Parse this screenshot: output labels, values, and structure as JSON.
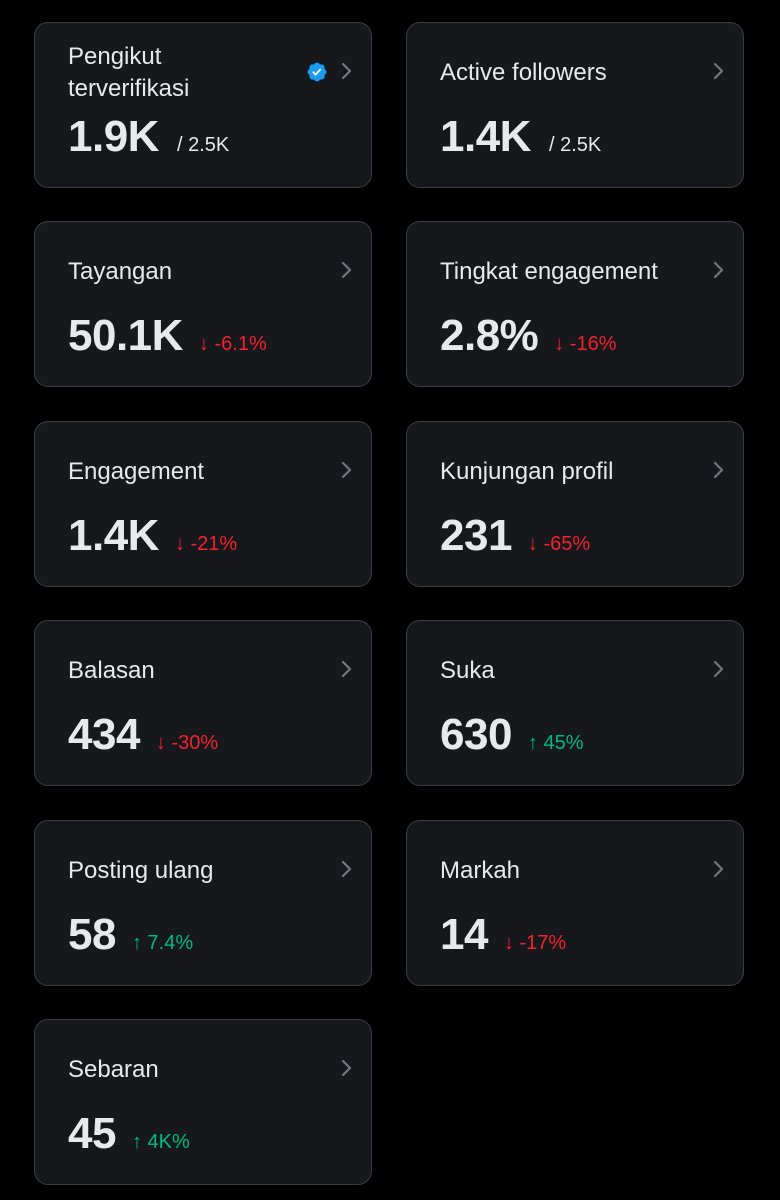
{
  "colors": {
    "background": "#000000",
    "card": "#16181c",
    "card_border": "#3a3d42",
    "text": "#e7e9ea",
    "down": "#f4212e",
    "up": "#00ba7c",
    "verified": "#1d9bf0"
  },
  "cards": [
    {
      "label": "Pengikut terverifikasi",
      "value": "1.9K",
      "sub": "/ 2.5K",
      "icon": "verified-badge-icon"
    },
    {
      "label": "Active followers",
      "value": "1.4K",
      "sub": "/ 2.5K"
    },
    {
      "label": "Tayangan",
      "value": "50.1K",
      "change": "↓ -6.1%",
      "direction": "down"
    },
    {
      "label": "Tingkat engagement",
      "value": "2.8%",
      "change": "↓ -16%",
      "direction": "down"
    },
    {
      "label": "Engagement",
      "value": "1.4K",
      "change": "↓ -21%",
      "direction": "down"
    },
    {
      "label": "Kunjungan profil",
      "value": "231",
      "change": "↓ -65%",
      "direction": "down"
    },
    {
      "label": "Balasan",
      "value": "434",
      "change": "↓ -30%",
      "direction": "down"
    },
    {
      "label": "Suka",
      "value": "630",
      "change": "↑ 45%",
      "direction": "up"
    },
    {
      "label": "Posting ulang",
      "value": "58",
      "change": "↑ 7.4%",
      "direction": "up"
    },
    {
      "label": "Markah",
      "value": "14",
      "change": "↓ -17%",
      "direction": "down"
    },
    {
      "label": "Sebaran",
      "value": "45",
      "change": "↑ 4K%",
      "direction": "up"
    }
  ]
}
